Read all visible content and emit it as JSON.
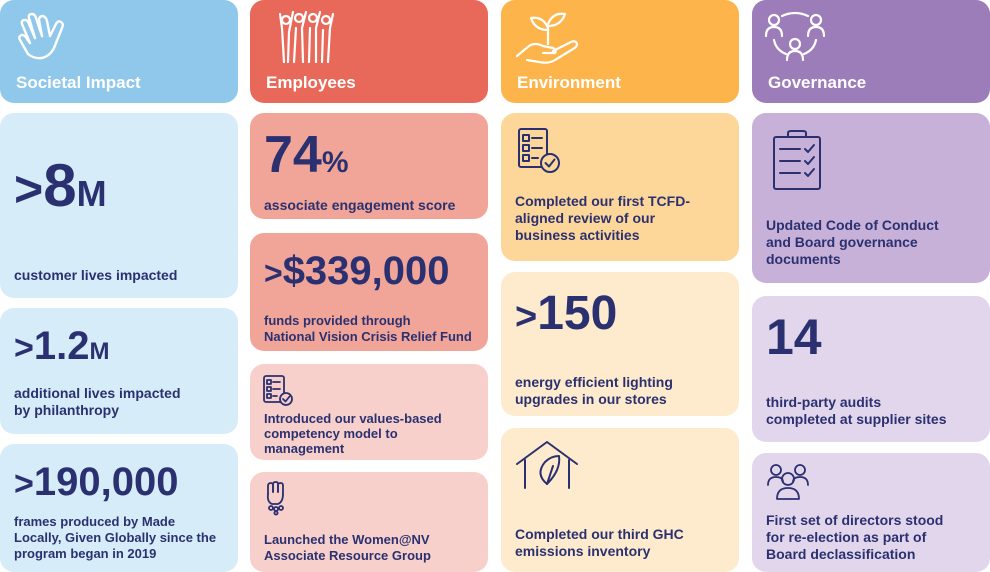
{
  "colors": {
    "societal_head": "#8fc8ea",
    "societal_light": "#d6ecf9",
    "employees_head": "#e8695a",
    "employees_mid": "#f1a598",
    "employees_light": "#f7d0cb",
    "environment_head": "#fdb44b",
    "environment_mid": "#fdd79a",
    "environment_light": "#feebcd",
    "governance_head": "#9c7cb9",
    "governance_mid": "#c7b1d9",
    "governance_light": "#e2d6ec",
    "text": "#2b3170"
  },
  "columns": {
    "societal": {
      "title": "Societal Impact",
      "icon": "hand-icon",
      "stat1": {
        "prefix": ">",
        "value": "8",
        "suffix": "M",
        "lines": [
          "customer lives impacted"
        ]
      },
      "stat2": {
        "prefix": ">",
        "value": "1.2",
        "suffix": "M",
        "lines": [
          "additional lives impacted",
          "by philanthropy"
        ]
      },
      "stat3": {
        "prefix": ">",
        "value": "190,000",
        "lines": [
          "frames produced by Made",
          "Locally, Given Globally since the",
          "program began in 2019"
        ]
      }
    },
    "employees": {
      "title": "Employees",
      "icon": "people-raising-hands-icon",
      "stat1": {
        "value": "74",
        "suffix": "%",
        "lines": [
          "associate engagement score"
        ]
      },
      "stat2": {
        "prefix": ">",
        "value": "$339,000",
        "lines": [
          "funds provided through",
          "National Vision Crisis Relief Fund"
        ]
      },
      "item3": {
        "icon": "checklist-document-icon",
        "lines": [
          "Introduced our values-based",
          "competency model to",
          "management"
        ]
      },
      "item4": {
        "icon": "raised-fist-icon",
        "lines": [
          "Launched the Women@NV",
          "Associate Resource Group"
        ]
      }
    },
    "environment": {
      "title": "Environment",
      "icon": "hand-holding-plant-icon",
      "item1": {
        "icon": "checklist-document-icon",
        "lines": [
          "Completed our first TCFD-",
          "aligned review of our",
          "business activities"
        ]
      },
      "stat2": {
        "prefix": ">",
        "value": "150",
        "lines": [
          "energy efficient lighting",
          "upgrades in our stores"
        ]
      },
      "item3": {
        "icon": "house-leaf-icon",
        "lines": [
          "Completed our third GHC",
          "emissions inventory"
        ]
      }
    },
    "governance": {
      "title": "Governance",
      "icon": "network-people-icon",
      "item1": {
        "icon": "clipboard-checklist-icon",
        "lines": [
          "Updated Code of Conduct",
          "and Board governance",
          "documents"
        ]
      },
      "stat2": {
        "value": "14",
        "lines": [
          "third-party audits",
          "completed at supplier sites"
        ]
      },
      "item3": {
        "icon": "group-people-icon",
        "lines": [
          "First set of directors stood",
          "for re-election as part of",
          "Board declassification"
        ]
      }
    }
  }
}
